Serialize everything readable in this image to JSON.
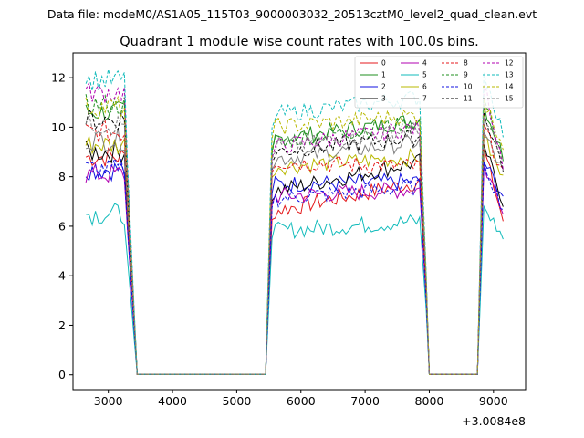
{
  "chart_data": {
    "type": "line",
    "suptitle": "Data file: modeM0/AS1A05_115T03_9000003032_20513cztM0_level2_quad_clean.evt",
    "title": "Quadrant 1 module wise count rates with 100.0s bins.",
    "xlabel": "",
    "ylabel": "",
    "x_offset_label": "+3.0084e8",
    "xlim": [
      2450,
      9500
    ],
    "ylim": [
      -0.6,
      13.0
    ],
    "x_ticks": [
      3000,
      4000,
      5000,
      6000,
      7000,
      8000,
      9000
    ],
    "y_ticks": [
      0,
      2,
      4,
      6,
      8,
      10,
      12
    ],
    "grid": false,
    "legend_placement": "top-right",
    "legend_columns": 4,
    "segments": [
      {
        "x_start": 2650,
        "x_end": 3450
      },
      {
        "x_start": 3450,
        "x_end": 5450
      },
      {
        "x_start": 5450,
        "x_end": 8050
      },
      {
        "x_start": 8050,
        "x_end": 8750
      },
      {
        "x_start": 8750,
        "x_end": 9150
      }
    ],
    "series": [
      {
        "name": "0",
        "color": "#e41a1c",
        "dash": "solid",
        "plateau1": 8.8,
        "plateau2": 6.6,
        "plateau3": 7.8
      },
      {
        "name": "1",
        "color": "#1f8f1f",
        "dash": "solid",
        "plateau1": 10.6,
        "plateau2": 9.5,
        "plateau3": 10.3
      },
      {
        "name": "2",
        "color": "#1010e0",
        "dash": "solid",
        "plateau1": 8.3,
        "plateau2": 7.7,
        "plateau3": 7.8
      },
      {
        "name": "3",
        "color": "#000000",
        "dash": "solid",
        "plateau1": 9.0,
        "plateau2": 7.4,
        "plateau3": 8.6
      },
      {
        "name": "4",
        "color": "#b000b0",
        "dash": "solid",
        "plateau1": 8.1,
        "plateau2": 7.2,
        "plateau3": 7.5
      },
      {
        "name": "5",
        "color": "#11bbbb",
        "dash": "solid",
        "plateau1": 6.5,
        "plateau2": 5.8,
        "plateau3": 6.2
      },
      {
        "name": "6",
        "color": "#b8b800",
        "dash": "solid",
        "plateau1": 9.3,
        "plateau2": 8.4,
        "plateau3": 8.8
      },
      {
        "name": "7",
        "color": "#808080",
        "dash": "solid",
        "plateau1": 9.5,
        "plateau2": 8.7,
        "plateau3": 9.4
      },
      {
        "name": "8",
        "color": "#e41a1c",
        "dash": "dashed",
        "plateau1": 9.8,
        "plateau2": 8.6,
        "plateau3": 8.4
      },
      {
        "name": "9",
        "color": "#1f8f1f",
        "dash": "dashed",
        "plateau1": 10.9,
        "plateau2": 9.4,
        "plateau3": 10.2
      },
      {
        "name": "10",
        "color": "#1010e0",
        "dash": "dashed",
        "plateau1": 8.3,
        "plateau2": 7.1,
        "plateau3": 7.6
      },
      {
        "name": "11",
        "color": "#000000",
        "dash": "dashed",
        "plateau1": 10.3,
        "plateau2": 9.0,
        "plateau3": 9.6
      },
      {
        "name": "12",
        "color": "#b000b0",
        "dash": "dashed",
        "plateau1": 11.4,
        "plateau2": 9.2,
        "plateau3": 10.0
      },
      {
        "name": "13",
        "color": "#11bbbb",
        "dash": "dashed",
        "plateau1": 11.9,
        "plateau2": 10.5,
        "plateau3": 11.2
      },
      {
        "name": "14",
        "color": "#b8b800",
        "dash": "dashed",
        "plateau1": 10.8,
        "plateau2": 10.0,
        "plateau3": 10.5
      },
      {
        "name": "15",
        "color": "#808080",
        "dash": "dashed",
        "plateau1": 10.1,
        "plateau2": 9.2,
        "plateau3": 9.9
      }
    ]
  }
}
